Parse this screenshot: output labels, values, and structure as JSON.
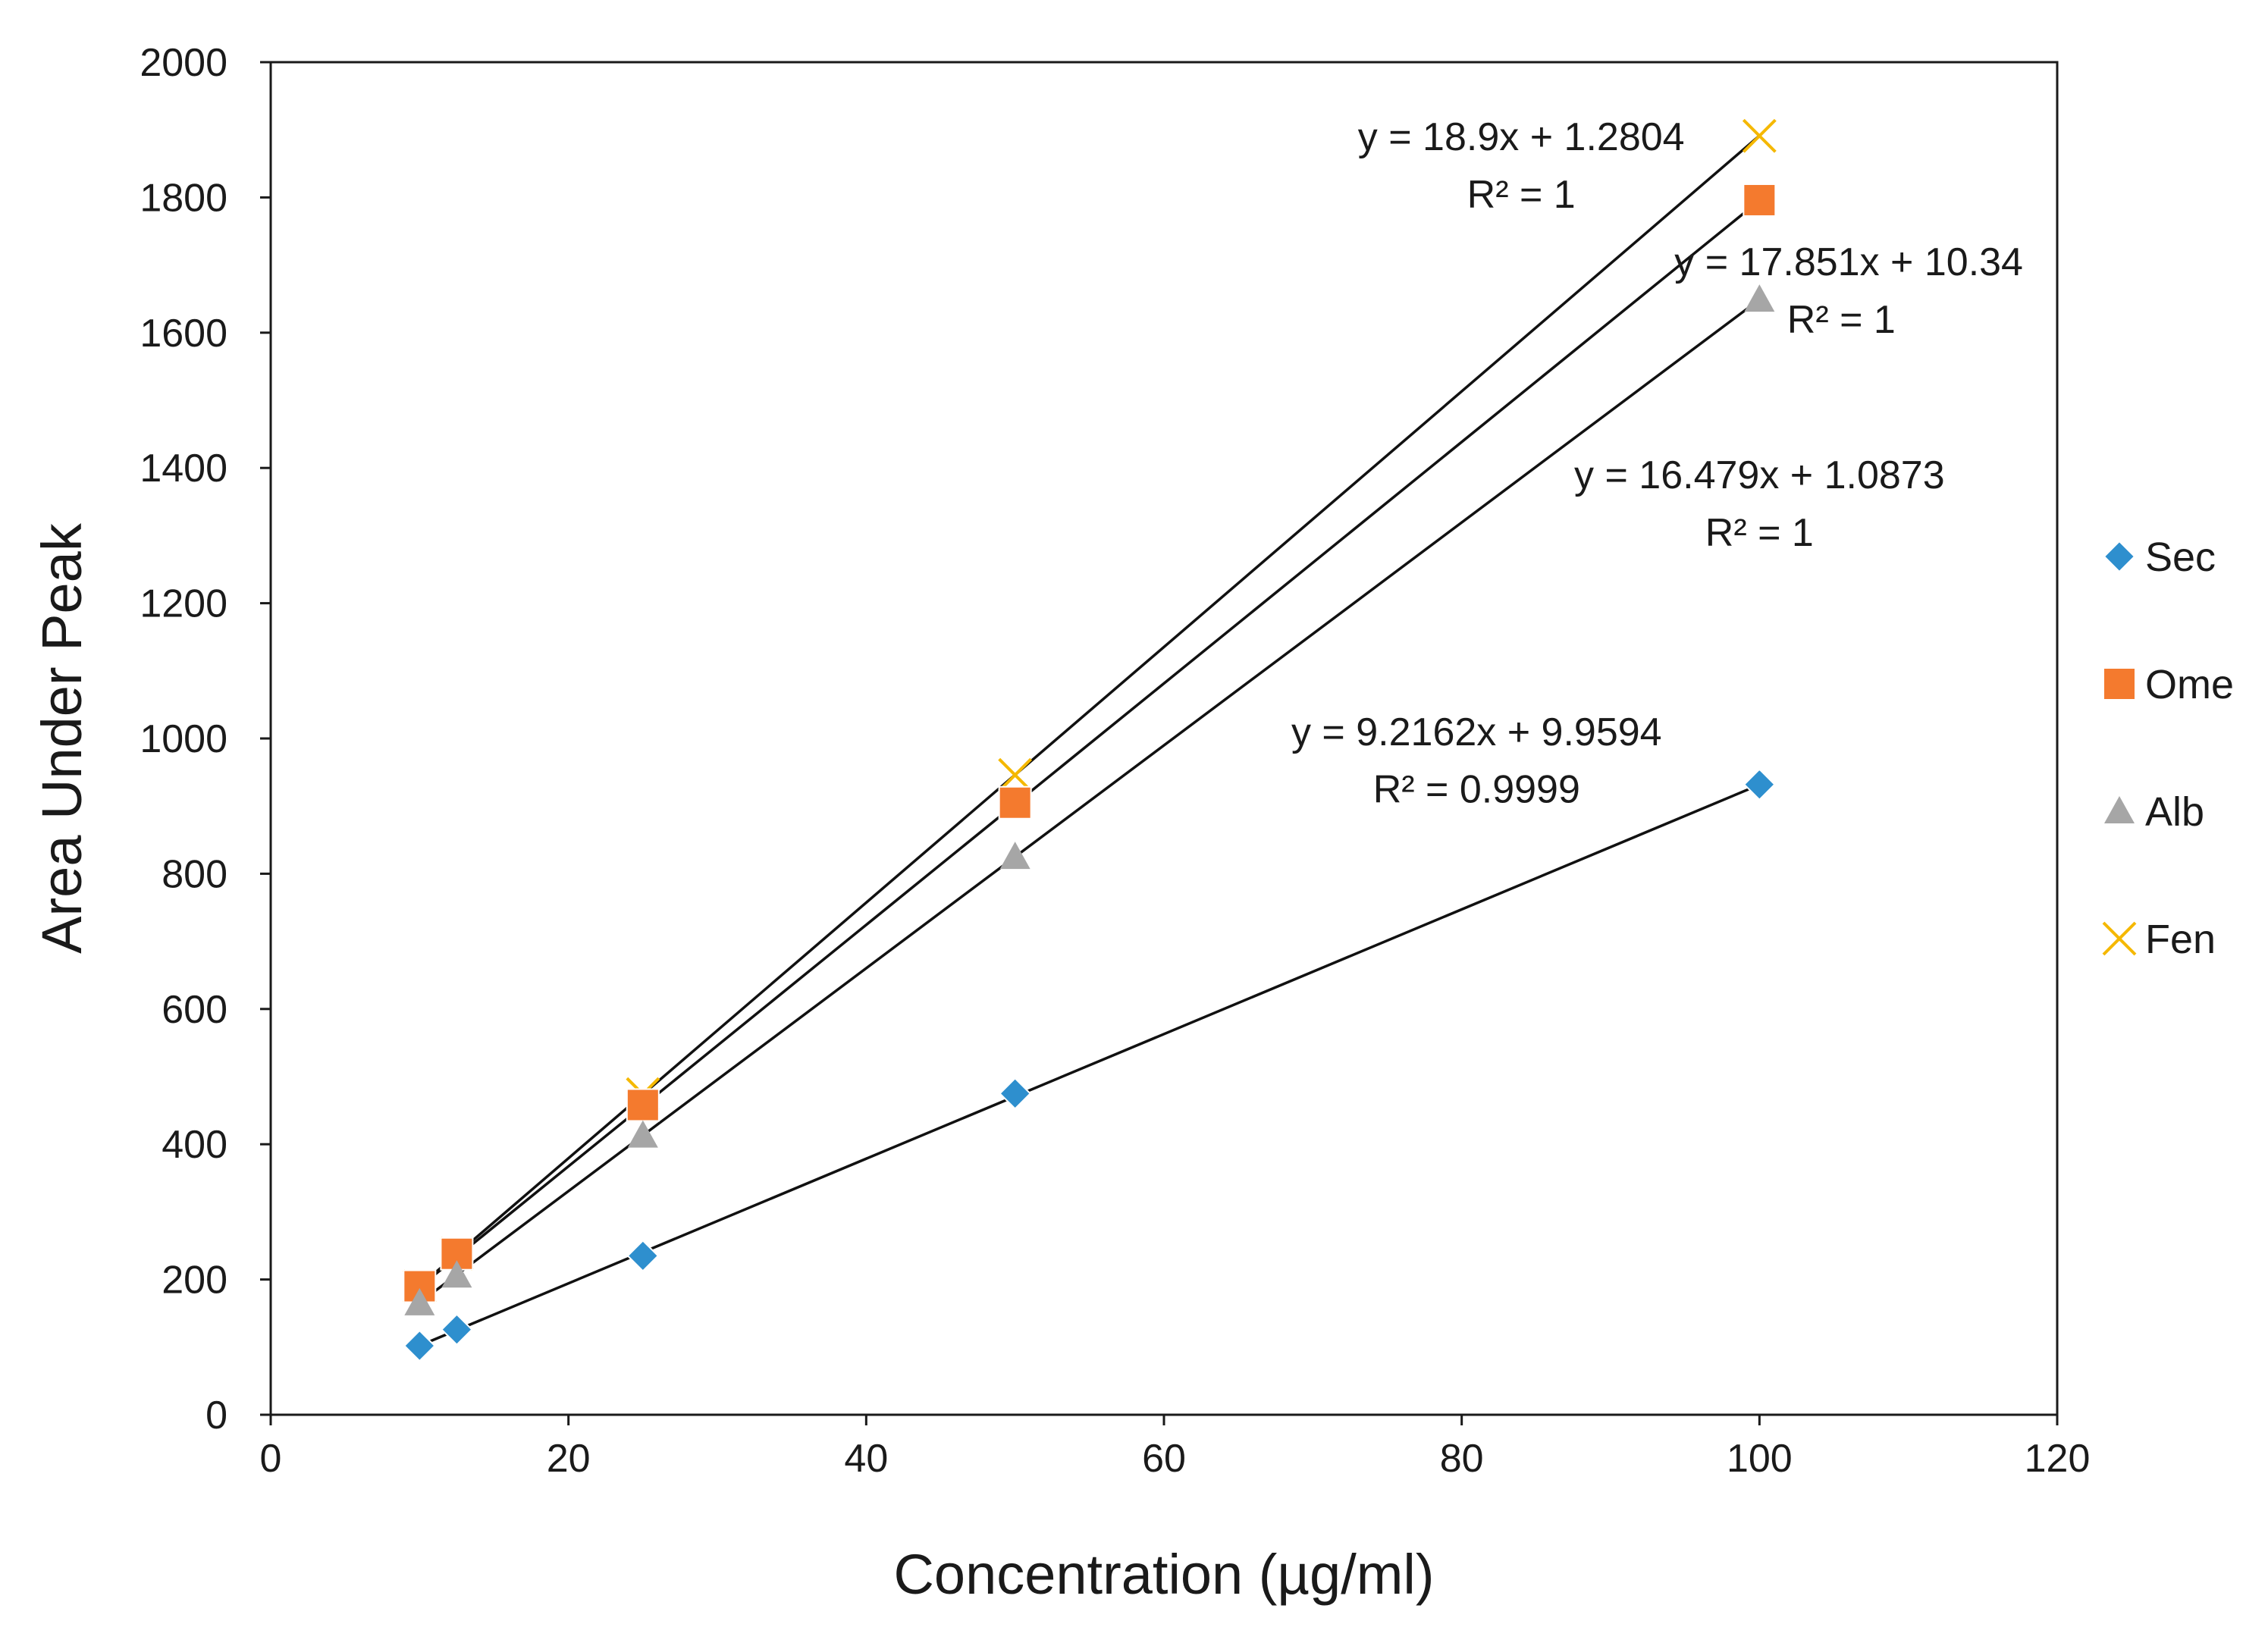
{
  "chart_data": {
    "type": "scatter",
    "title": "",
    "xlabel": "Concentration (µg/ml)",
    "ylabel": "Area Under Peak",
    "xlim": [
      0,
      120
    ],
    "ylim": [
      0,
      2000
    ],
    "x_ticks": [
      0,
      20,
      40,
      60,
      80,
      100,
      120
    ],
    "y_ticks": [
      0,
      200,
      400,
      600,
      800,
      1000,
      1200,
      1400,
      1600,
      1800,
      2000
    ],
    "x_tick_labels": [
      "0",
      "20",
      "40",
      "60",
      "80",
      "100",
      "120"
    ],
    "y_tick_labels": [
      "0",
      "200",
      "400",
      "600",
      "800",
      "1000",
      "1200",
      "1400",
      "1600",
      "1800",
      "2000"
    ],
    "grid": false,
    "legend_position": "right",
    "series": [
      {
        "name": "Sec",
        "marker": "diamond",
        "color": "#2E8FCE",
        "x": [
          10,
          12.5,
          25,
          50,
          100
        ],
        "y": [
          102,
          126,
          235,
          475,
          932
        ],
        "trendline": {
          "slope": 9.2162,
          "intercept": 9.9594,
          "equation": "y = 9.2162x + 9.9594",
          "r2": "R² = 0.9999"
        }
      },
      {
        "name": "Ome",
        "marker": "square",
        "color": "#F47A2E",
        "x": [
          10,
          12.5,
          25,
          50,
          100
        ],
        "y": [
          190,
          238,
          458,
          905,
          1796
        ],
        "trendline": {
          "slope": 17.851,
          "intercept": 10.34,
          "equation": "y = 17.851x + 10.34",
          "r2": "R² = 1"
        }
      },
      {
        "name": "Alb",
        "marker": "triangle",
        "color": "#A6A6A6",
        "x": [
          10,
          12.5,
          25,
          50,
          100
        ],
        "y": [
          165,
          206,
          413,
          825,
          1649
        ],
        "trendline": {
          "slope": 16.479,
          "intercept": 1.0873,
          "equation": "y = 16.479x + 1.0873",
          "r2": "R² = 1"
        }
      },
      {
        "name": "Fen",
        "marker": "x",
        "color": "#F5B800",
        "x": [
          10,
          12.5,
          25,
          50,
          100
        ],
        "y": [
          190,
          238,
          474,
          946,
          1891
        ],
        "trendline": {
          "slope": 18.9,
          "intercept": 1.2804,
          "equation": "y = 18.9x + 1.2804",
          "r2": "R² = 1"
        }
      }
    ],
    "annotations": [
      {
        "series": "Fen",
        "text": "y = 18.9x + 1.2804",
        "x": 84,
        "y": 1870
      },
      {
        "series": "Fen",
        "text": "R² = 1",
        "x": 84,
        "y": 1785
      },
      {
        "series": "Ome",
        "text": "y = 17.851x + 10.34",
        "x": 106,
        "y": 1685
      },
      {
        "series": "Ome",
        "text": "R² = 1",
        "x": 105.5,
        "y": 1600
      },
      {
        "series": "Alb",
        "text": "y = 16.479x + 1.0873",
        "x": 100,
        "y": 1370
      },
      {
        "series": "Alb",
        "text": "R² = 1",
        "x": 100,
        "y": 1285
      },
      {
        "series": "Sec",
        "text": "y = 9.2162x + 9.9594",
        "x": 81,
        "y": 990
      },
      {
        "series": "Sec",
        "text": "R² = 0.9999",
        "x": 81,
        "y": 905
      }
    ]
  }
}
